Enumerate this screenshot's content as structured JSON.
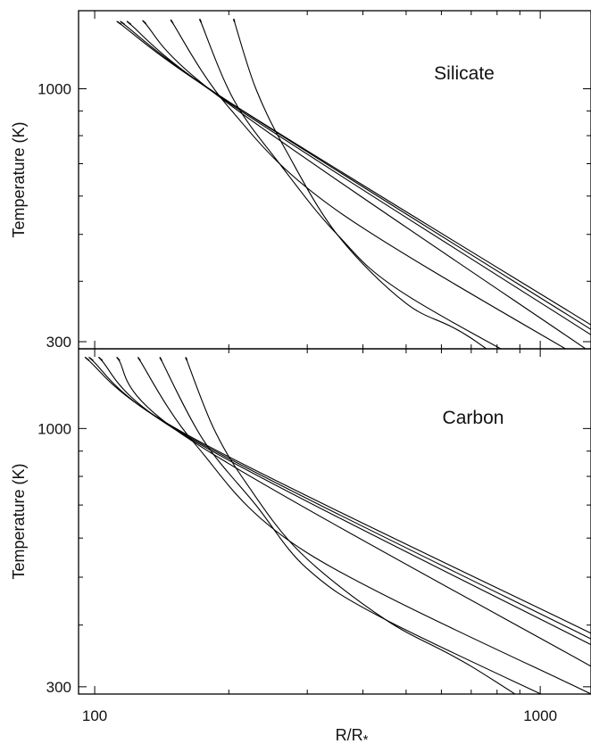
{
  "chart_data": [
    {
      "type": "line",
      "panel": "top",
      "annotation": "Silicate",
      "ylabel": "Temperature (K)",
      "xscale": "log",
      "yscale": "log",
      "xlim": [
        92,
        1300
      ],
      "ylim": [
        290,
        1450
      ],
      "yticks": [
        300,
        1000
      ],
      "series": [
        {
          "x": [
            112,
            200,
            1300
          ],
          "y": [
            1380,
            940,
            325
          ]
        },
        {
          "x": [
            114,
            200,
            1300
          ],
          "y": [
            1380,
            940,
            318
          ]
        },
        {
          "x": [
            118,
            200,
            1300
          ],
          "y": [
            1380,
            935,
            310
          ]
        },
        {
          "x": [
            128,
            200,
            1300
          ],
          "y": [
            1385,
            930,
            285
          ]
        },
        {
          "x": [
            148,
            200,
            350,
            1300
          ],
          "y": [
            1390,
            915,
            560,
            270
          ]
        },
        {
          "x": [
            172,
            205,
            260,
            350,
            500,
            1300
          ],
          "y": [
            1395,
            950,
            700,
            500,
            375,
            230
          ]
        },
        {
          "x": [
            205,
            230,
            270,
            350,
            500,
            700,
            1300
          ],
          "y": [
            1395,
            1000,
            740,
            500,
            360,
            305,
            200
          ]
        }
      ]
    },
    {
      "type": "line",
      "panel": "bottom",
      "annotation": "Carbon",
      "xlabel": "R/R*",
      "ylabel": "Temperature (K)",
      "xscale": "log",
      "yscale": "log",
      "xlim": [
        92,
        1300
      ],
      "ylim": [
        290,
        1450
      ],
      "xticks": [
        100,
        1000
      ],
      "yticks": [
        300,
        1000
      ],
      "series": [
        {
          "x": [
            95,
            165,
            1300
          ],
          "y": [
            1395,
            960,
            385
          ]
        },
        {
          "x": [
            97,
            165,
            1300
          ],
          "y": [
            1395,
            955,
            375
          ]
        },
        {
          "x": [
            102,
            165,
            1300
          ],
          "y": [
            1395,
            950,
            365
          ]
        },
        {
          "x": [
            112,
            165,
            1300
          ],
          "y": [
            1395,
            945,
            330
          ]
        },
        {
          "x": [
            125,
            168,
            300,
            1300
          ],
          "y": [
            1395,
            930,
            560,
            290
          ]
        },
        {
          "x": [
            140,
            175,
            230,
            300,
            450,
            1300
          ],
          "y": [
            1395,
            950,
            700,
            520,
            410,
            260
          ]
        },
        {
          "x": [
            160,
            185,
            220,
            290,
            450,
            700,
            1300
          ],
          "y": [
            1395,
            1000,
            770,
            560,
            410,
            330,
            230
          ]
        }
      ]
    }
  ],
  "axis": {
    "xlabel_main": "R/R",
    "xlabel_sub": "*"
  }
}
